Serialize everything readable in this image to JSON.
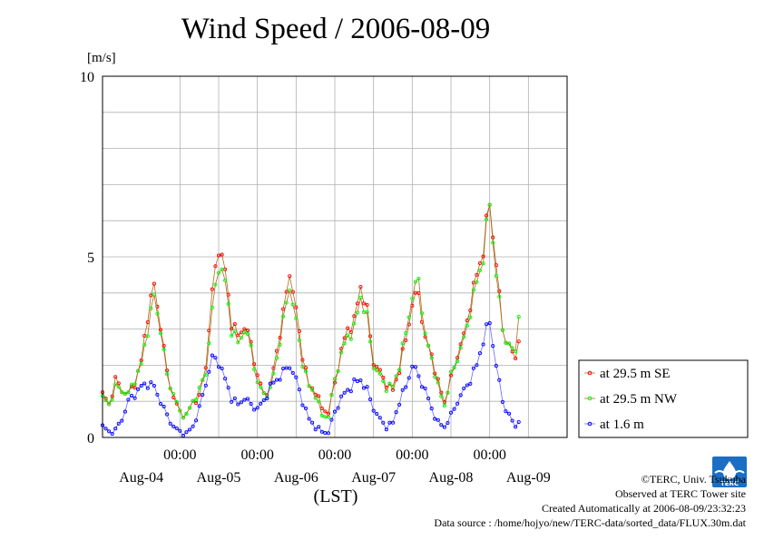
{
  "page": {
    "title": "Wind Speed / 2006-08-09",
    "unit": "[m/s]",
    "xaxis_title": "(LST)",
    "credits": [
      "©TERC, Univ. Tsukuba",
      "Observed at TERC Tower site",
      "Created Automatically at 2006-08-09/23:32:23",
      "Data source : /home/hojyo/new/TERC-data/sorted_data/FLUX.30m.dat"
    ],
    "logo_text": "TERC"
  },
  "chart_data": {
    "type": "line",
    "title": "Wind Speed / 2006-08-09",
    "ylabel": "[m/s]",
    "xlabel": "(LST)",
    "ylim": [
      0,
      10
    ],
    "yticks": [
      0,
      5,
      10
    ],
    "x_time_ticks": [
      "00:00",
      "00:00",
      "00:00",
      "00:00",
      "00:00"
    ],
    "x_date_labels": [
      "Aug-04",
      "Aug-05",
      "Aug-06",
      "Aug-07",
      "Aug-08",
      "Aug-09"
    ],
    "xlim_hours": [
      0,
      144
    ],
    "grid": true,
    "legend_position": "right",
    "series": [
      {
        "name": "at 29.5 m SE",
        "color": "#ff0000",
        "line_color": "#b06a1e",
        "marker": "circle",
        "keypoints": [
          [
            0,
            1.2
          ],
          [
            2,
            0.9
          ],
          [
            4,
            1.6
          ],
          [
            6,
            1.3
          ],
          [
            8,
            1.2
          ],
          [
            10,
            1.5
          ],
          [
            12,
            2.1
          ],
          [
            14,
            3.4
          ],
          [
            16,
            4.2
          ],
          [
            18,
            3.1
          ],
          [
            20,
            1.8
          ],
          [
            22,
            1.1
          ],
          [
            24,
            0.7
          ],
          [
            26,
            0.6
          ],
          [
            28,
            1.0
          ],
          [
            30,
            1.1
          ],
          [
            32,
            2.0
          ],
          [
            34,
            4.0
          ],
          [
            36,
            5.3
          ],
          [
            38,
            4.6
          ],
          [
            40,
            3.2
          ],
          [
            42,
            2.8
          ],
          [
            44,
            3.1
          ],
          [
            46,
            2.6
          ],
          [
            48,
            1.7
          ],
          [
            50,
            1.2
          ],
          [
            52,
            1.4
          ],
          [
            54,
            2.4
          ],
          [
            56,
            3.4
          ],
          [
            58,
            4.6
          ],
          [
            60,
            3.5
          ],
          [
            62,
            2.3
          ],
          [
            64,
            1.4
          ],
          [
            66,
            1.3
          ],
          [
            68,
            0.8
          ],
          [
            70,
            0.7
          ],
          [
            72,
            1.5
          ],
          [
            74,
            2.4
          ],
          [
            76,
            3.0
          ],
          [
            78,
            3.2
          ],
          [
            80,
            4.2
          ],
          [
            82,
            3.5
          ],
          [
            84,
            2.1
          ],
          [
            86,
            1.8
          ],
          [
            88,
            1.5
          ],
          [
            90,
            1.3
          ],
          [
            92,
            1.9
          ],
          [
            94,
            2.7
          ],
          [
            96,
            3.7
          ],
          [
            98,
            4.0
          ],
          [
            100,
            2.7
          ],
          [
            102,
            2.3
          ],
          [
            104,
            1.5
          ],
          [
            106,
            1.0
          ],
          [
            108,
            1.6
          ],
          [
            110,
            2.3
          ],
          [
            112,
            2.8
          ],
          [
            114,
            3.7
          ],
          [
            116,
            4.5
          ],
          [
            118,
            5.2
          ],
          [
            120,
            6.5
          ],
          [
            122,
            4.8
          ],
          [
            124,
            3.0
          ],
          [
            126,
            2.5
          ],
          [
            128,
            2.2
          ],
          [
            129,
            2.8
          ]
        ]
      },
      {
        "name": "at 29.5 m NW",
        "color": "#00ff00",
        "line_color": "#b06a1e",
        "marker": "circle",
        "keypoints": [
          [
            0,
            1.1
          ],
          [
            2,
            0.9
          ],
          [
            4,
            1.4
          ],
          [
            6,
            1.3
          ],
          [
            8,
            1.2
          ],
          [
            10,
            1.6
          ],
          [
            12,
            2.0
          ],
          [
            14,
            3.0
          ],
          [
            16,
            3.9
          ],
          [
            18,
            3.0
          ],
          [
            20,
            1.7
          ],
          [
            22,
            1.2
          ],
          [
            24,
            0.7
          ],
          [
            26,
            0.6
          ],
          [
            28,
            1.0
          ],
          [
            30,
            1.3
          ],
          [
            32,
            1.8
          ],
          [
            34,
            3.5
          ],
          [
            36,
            4.8
          ],
          [
            38,
            4.3
          ],
          [
            40,
            3.0
          ],
          [
            42,
            2.6
          ],
          [
            44,
            3.0
          ],
          [
            46,
            2.5
          ],
          [
            48,
            1.5
          ],
          [
            50,
            1.2
          ],
          [
            52,
            1.3
          ],
          [
            54,
            2.2
          ],
          [
            56,
            3.2
          ],
          [
            58,
            4.2
          ],
          [
            60,
            3.2
          ],
          [
            62,
            2.1
          ],
          [
            64,
            1.4
          ],
          [
            66,
            1.2
          ],
          [
            68,
            0.6
          ],
          [
            70,
            0.6
          ],
          [
            72,
            1.6
          ],
          [
            74,
            2.3
          ],
          [
            76,
            2.8
          ],
          [
            78,
            3.0
          ],
          [
            80,
            3.9
          ],
          [
            82,
            3.3
          ],
          [
            84,
            2.0
          ],
          [
            86,
            1.7
          ],
          [
            88,
            1.4
          ],
          [
            90,
            1.4
          ],
          [
            92,
            2.0
          ],
          [
            94,
            2.9
          ],
          [
            96,
            3.9
          ],
          [
            98,
            4.4
          ],
          [
            100,
            2.8
          ],
          [
            102,
            2.2
          ],
          [
            104,
            1.4
          ],
          [
            106,
            0.9
          ],
          [
            108,
            1.7
          ],
          [
            110,
            2.2
          ],
          [
            112,
            2.7
          ],
          [
            114,
            3.5
          ],
          [
            116,
            4.3
          ],
          [
            118,
            5.0
          ],
          [
            120,
            6.5
          ],
          [
            122,
            4.5
          ],
          [
            124,
            3.0
          ],
          [
            126,
            2.5
          ],
          [
            128,
            2.4
          ],
          [
            129,
            3.5
          ]
        ]
      },
      {
        "name": "at 1.6 m",
        "color": "#0000ff",
        "line_color": "#6666ff",
        "marker": "circle",
        "keypoints": [
          [
            0,
            0.3
          ],
          [
            2,
            0.15
          ],
          [
            4,
            0.2
          ],
          [
            6,
            0.5
          ],
          [
            8,
            1.0
          ],
          [
            10,
            1.2
          ],
          [
            12,
            1.4
          ],
          [
            14,
            1.5
          ],
          [
            16,
            1.4
          ],
          [
            18,
            1.0
          ],
          [
            20,
            0.6
          ],
          [
            22,
            0.3
          ],
          [
            24,
            0.15
          ],
          [
            26,
            0.1
          ],
          [
            28,
            0.3
          ],
          [
            30,
            0.8
          ],
          [
            32,
            1.5
          ],
          [
            34,
            2.2
          ],
          [
            36,
            2.1
          ],
          [
            38,
            1.6
          ],
          [
            40,
            1.1
          ],
          [
            42,
            0.9
          ],
          [
            44,
            1.1
          ],
          [
            46,
            0.9
          ],
          [
            48,
            0.8
          ],
          [
            50,
            1.0
          ],
          [
            52,
            1.4
          ],
          [
            54,
            1.6
          ],
          [
            56,
            1.8
          ],
          [
            58,
            2.0
          ],
          [
            60,
            1.6
          ],
          [
            62,
            1.0
          ],
          [
            64,
            0.5
          ],
          [
            66,
            0.3
          ],
          [
            68,
            0.15
          ],
          [
            70,
            0.15
          ],
          [
            72,
            0.7
          ],
          [
            74,
            1.1
          ],
          [
            76,
            1.3
          ],
          [
            78,
            1.5
          ],
          [
            80,
            1.6
          ],
          [
            82,
            1.3
          ],
          [
            84,
            0.8
          ],
          [
            86,
            0.5
          ],
          [
            88,
            0.3
          ],
          [
            90,
            0.4
          ],
          [
            92,
            1.0
          ],
          [
            94,
            1.4
          ],
          [
            96,
            2.0
          ],
          [
            98,
            1.7
          ],
          [
            100,
            1.3
          ],
          [
            102,
            0.8
          ],
          [
            104,
            0.4
          ],
          [
            106,
            0.3
          ],
          [
            108,
            0.6
          ],
          [
            110,
            1.0
          ],
          [
            112,
            1.3
          ],
          [
            114,
            1.6
          ],
          [
            116,
            2.0
          ],
          [
            118,
            2.7
          ],
          [
            120,
            3.2
          ],
          [
            122,
            2.0
          ],
          [
            124,
            1.0
          ],
          [
            126,
            0.6
          ],
          [
            128,
            0.3
          ],
          [
            129,
            0.5
          ]
        ]
      }
    ]
  }
}
